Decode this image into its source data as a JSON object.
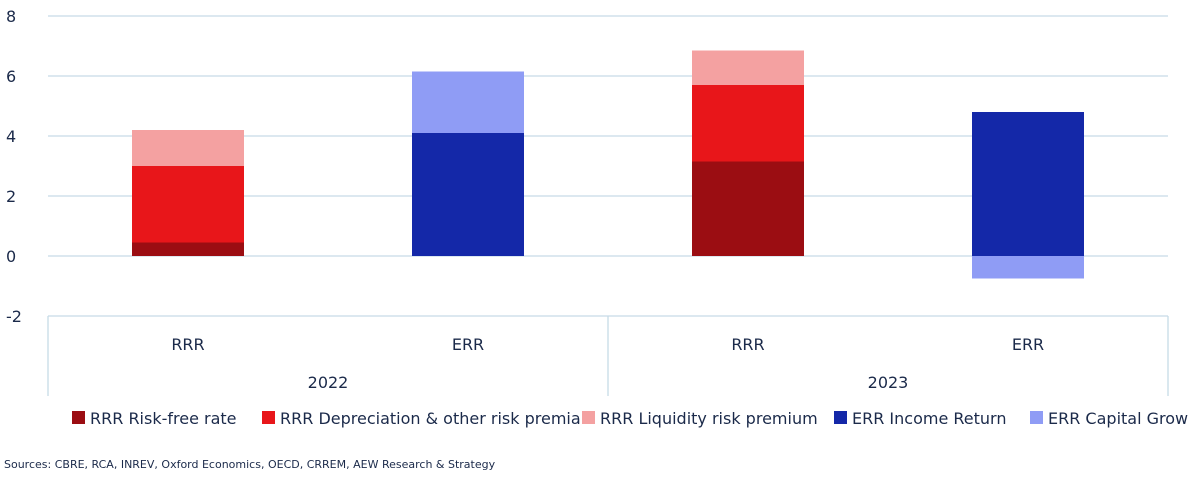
{
  "chart_data": {
    "type": "bar",
    "stacked": true,
    "categories": [
      "RRR",
      "ERR",
      "RRR",
      "ERR"
    ],
    "groups": [
      {
        "label": "2022",
        "categories": [
          "RRR",
          "ERR"
        ]
      },
      {
        "label": "2023",
        "categories": [
          "RRR",
          "ERR"
        ]
      }
    ],
    "series": [
      {
        "name": "RRR Risk-free rate",
        "color": "#9b0d12",
        "values": [
          0.45,
          0,
          3.15,
          0
        ]
      },
      {
        "name": "RRR Depreciation & other risk premia",
        "color": "#e8161a",
        "values": [
          2.55,
          0,
          2.55,
          0
        ]
      },
      {
        "name": "RRR Liquidity risk premium",
        "color": "#f4a1a1",
        "values": [
          1.2,
          0,
          1.15,
          0
        ]
      },
      {
        "name": "ERR Income Return",
        "color": "#1428a8",
        "values": [
          0,
          4.1,
          0,
          4.8
        ]
      },
      {
        "name": "ERR Capital Growth",
        "color": "#8f9cf5",
        "values": [
          0,
          2.05,
          0,
          -0.75
        ]
      }
    ],
    "ylim": [
      -2,
      8
    ],
    "yticks": [
      8,
      6,
      4,
      2,
      0,
      -2
    ],
    "grid": true,
    "legend": "bottom",
    "xlabel": "",
    "ylabel": "",
    "title": ""
  },
  "source_note": "Sources: CBRE, RCA, INREV, Oxford Economics, OECD, CRREM, AEW Research & Strategy",
  "colors": {
    "grid": "#c7dbe6",
    "text": "#1b2a4a"
  }
}
